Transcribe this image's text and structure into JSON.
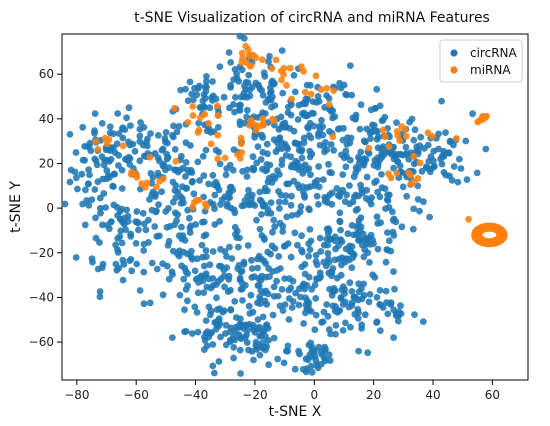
{
  "chart_data": {
    "type": "scatter",
    "title": "t-SNE Visualization of circRNA and miRNA Features",
    "xlabel": "t-SNE X",
    "ylabel": "t-SNE Y",
    "xlim": [
      -85,
      72
    ],
    "ylim": [
      -77,
      78
    ],
    "xticks": [
      -80,
      -60,
      -40,
      -20,
      0,
      20,
      40,
      60
    ],
    "yticks": [
      -60,
      -40,
      -20,
      0,
      20,
      40,
      60
    ],
    "grid": false,
    "legend_position": "top-right",
    "colors": {
      "circRNA": "#1f77b4",
      "miRNA": "#ff7f0e"
    },
    "series": [
      {
        "name": "circRNA",
        "clusters": [
          {
            "cx": -72,
            "cy": 18,
            "sx": 5,
            "sy": 12,
            "n": 70
          },
          {
            "cx": -58,
            "cy": 25,
            "sx": 7,
            "sy": 8,
            "n": 60
          },
          {
            "cx": -65,
            "cy": -12,
            "sx": 7,
            "sy": 12,
            "n": 60
          },
          {
            "cx": -45,
            "cy": 5,
            "sx": 10,
            "sy": 14,
            "n": 100
          },
          {
            "cx": -38,
            "cy": 45,
            "sx": 6,
            "sy": 6,
            "n": 40
          },
          {
            "cx": -22,
            "cy": 55,
            "sx": 7,
            "sy": 10,
            "n": 60
          },
          {
            "cx": -10,
            "cy": 35,
            "sx": 10,
            "sy": 10,
            "n": 80
          },
          {
            "cx": 5,
            "cy": 40,
            "sx": 12,
            "sy": 10,
            "n": 80
          },
          {
            "cx": 25,
            "cy": 22,
            "sx": 14,
            "sy": 10,
            "n": 140
          },
          {
            "cx": 15,
            "cy": -5,
            "sx": 10,
            "sy": 10,
            "n": 70
          },
          {
            "cx": -25,
            "cy": 5,
            "sx": 10,
            "sy": 12,
            "n": 90
          },
          {
            "cx": -35,
            "cy": -30,
            "sx": 10,
            "sy": 10,
            "n": 80
          },
          {
            "cx": -20,
            "cy": -35,
            "sx": 8,
            "sy": 8,
            "n": 60
          },
          {
            "cx": -30,
            "cy": -55,
            "sx": 8,
            "sy": 6,
            "n": 60
          },
          {
            "cx": -18,
            "cy": -60,
            "sx": 5,
            "sy": 5,
            "n": 40
          },
          {
            "cx": 0,
            "cy": -67,
            "sx": 3,
            "sy": 3,
            "n": 30
          },
          {
            "cx": 0,
            "cy": -40,
            "sx": 8,
            "sy": 10,
            "n": 70
          },
          {
            "cx": 15,
            "cy": -45,
            "sx": 8,
            "sy": 8,
            "n": 60
          },
          {
            "cx": 10,
            "cy": -20,
            "sx": 10,
            "sy": 8,
            "n": 70
          },
          {
            "cx": -5,
            "cy": 10,
            "sx": 10,
            "sy": 10,
            "n": 70
          },
          {
            "cx": 40,
            "cy": 25,
            "sx": 5,
            "sy": 6,
            "n": 30
          },
          {
            "cx": 28,
            "cy": -47,
            "sx": 0.8,
            "sy": 0.8,
            "n": 8
          }
        ]
      },
      {
        "name": "miRNA",
        "clusters": [
          {
            "cx": -40,
            "cy": 40,
            "sx": 4,
            "sy": 4,
            "n": 12
          },
          {
            "cx": -55,
            "cy": 15,
            "sx": 4,
            "sy": 5,
            "n": 12
          },
          {
            "cx": -22,
            "cy": 68,
            "sx": 3,
            "sy": 3,
            "n": 14
          },
          {
            "cx": -10,
            "cy": 62,
            "sx": 5,
            "sy": 3,
            "n": 10
          },
          {
            "cx": 0,
            "cy": 55,
            "sx": 3,
            "sy": 4,
            "n": 8
          },
          {
            "cx": -20,
            "cy": 35,
            "sx": 3,
            "sy": 4,
            "n": 10
          },
          {
            "cx": 25,
            "cy": 32,
            "sx": 8,
            "sy": 3,
            "n": 14
          },
          {
            "cx": 30,
            "cy": 15,
            "sx": 5,
            "sy": 4,
            "n": 10
          },
          {
            "cx": -70,
            "cy": 30,
            "sx": 2,
            "sy": 2,
            "n": 6
          },
          {
            "cx": -30,
            "cy": 25,
            "sx": 4,
            "sy": 3,
            "n": 8
          },
          {
            "cx": -40,
            "cy": 0,
            "sx": 2,
            "sy": 2,
            "n": 6
          },
          {
            "cx": 57,
            "cy": 40,
            "sx": 1,
            "sy": 1.5,
            "n": 8
          }
        ],
        "rings": [
          {
            "cx": 59,
            "cy": -12,
            "rx": 5,
            "ry": 4,
            "n": 60
          },
          {
            "cx": 59,
            "cy": -12,
            "rx": 3.5,
            "ry": 3,
            "n": 40
          }
        ],
        "points": [
          [
            52,
            -5
          ]
        ]
      }
    ]
  }
}
